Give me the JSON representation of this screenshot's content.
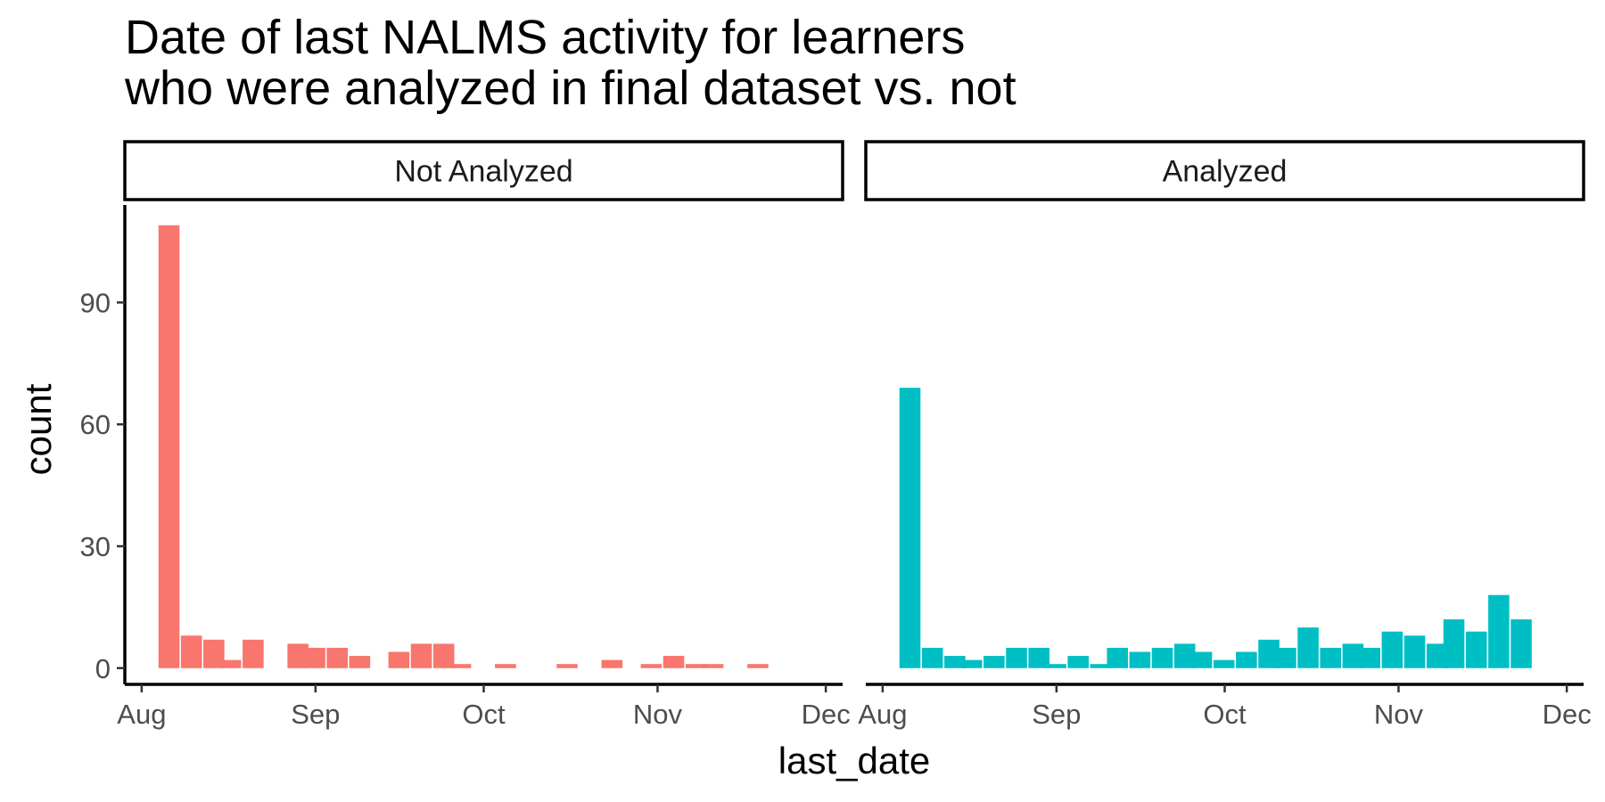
{
  "chart_data": {
    "type": "bar",
    "title": "Date of last NALMS activity for learners\nwho were analyzed in final dataset vs. not",
    "xlabel": "last_date",
    "ylabel": "count",
    "y_ticks": [
      0,
      30,
      60,
      90
    ],
    "x_ticks": [
      "Aug",
      "Sep",
      "Oct",
      "Nov",
      "Dec"
    ],
    "x_tick_dates": [
      "2023-08-01",
      "2023-09-01",
      "2023-10-01",
      "2023-11-01",
      "2023-12-01"
    ],
    "xlim": [
      "2023-07-29",
      "2023-12-04"
    ],
    "ylim": [
      -4,
      114
    ],
    "grid": false,
    "legend": "none",
    "bin_width_days": 3.75,
    "panels": [
      {
        "name": "Not Analyzed",
        "color": "#F8766D",
        "bin_start_dates": [
          "2023-08-04",
          "2023-08-08",
          "2023-08-12",
          "2023-08-15",
          "2023-08-19",
          "2023-08-23",
          "2023-08-27",
          "2023-08-30",
          "2023-09-03",
          "2023-09-07",
          "2023-09-10",
          "2023-09-14",
          "2023-09-18",
          "2023-09-22",
          "2023-09-25",
          "2023-09-29",
          "2023-10-03",
          "2023-10-07",
          "2023-10-10",
          "2023-10-14",
          "2023-10-18",
          "2023-10-22",
          "2023-10-25",
          "2023-10-29",
          "2023-11-02",
          "2023-11-06",
          "2023-11-09",
          "2023-11-13",
          "2023-11-17",
          "2023-11-21",
          "2023-11-24"
        ],
        "values": [
          109,
          8,
          7,
          2,
          7,
          0,
          6,
          5,
          5,
          3,
          0,
          4,
          6,
          6,
          1,
          0,
          1,
          0,
          0,
          1,
          0,
          2,
          0,
          1,
          3,
          1,
          1,
          0,
          1,
          0,
          0
        ]
      },
      {
        "name": "Analyzed",
        "color": "#00BFC4",
        "bin_start_dates": [
          "2023-08-04",
          "2023-08-08",
          "2023-08-12",
          "2023-08-15",
          "2023-08-19",
          "2023-08-23",
          "2023-08-27",
          "2023-08-30",
          "2023-09-03",
          "2023-09-07",
          "2023-09-10",
          "2023-09-14",
          "2023-09-18",
          "2023-09-22",
          "2023-09-25",
          "2023-09-29",
          "2023-10-03",
          "2023-10-07",
          "2023-10-10",
          "2023-10-14",
          "2023-10-18",
          "2023-10-22",
          "2023-10-25",
          "2023-10-29",
          "2023-11-02",
          "2023-11-06",
          "2023-11-09",
          "2023-11-13",
          "2023-11-17",
          "2023-11-21",
          "2023-11-24"
        ],
        "values": [
          69,
          5,
          3,
          2,
          3,
          5,
          5,
          1,
          3,
          1,
          5,
          4,
          5,
          6,
          4,
          2,
          4,
          7,
          5,
          10,
          5,
          6,
          5,
          9,
          8,
          6,
          12,
          9,
          18,
          12,
          0
        ]
      }
    ]
  }
}
